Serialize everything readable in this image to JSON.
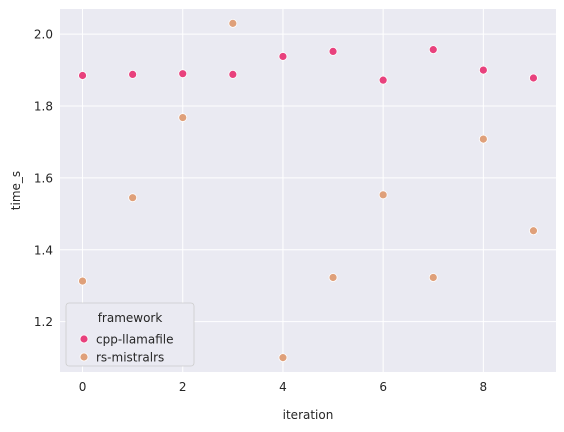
{
  "chart_data": {
    "type": "scatter",
    "xlabel": "iteration",
    "ylabel": "time_s",
    "xlim": [
      -0.45,
      9.45
    ],
    "ylim": [
      1.06,
      2.07
    ],
    "x_ticks": [
      0,
      2,
      4,
      6,
      8
    ],
    "y_ticks": [
      1.2,
      1.4,
      1.6,
      1.8,
      2.0
    ],
    "x_tick_labels": [
      "0",
      "2",
      "4",
      "6",
      "8"
    ],
    "y_tick_labels": [
      "1.2",
      "1.4",
      "1.6",
      "1.8",
      "2.0"
    ],
    "grid": true,
    "legend": {
      "title": "framework",
      "placement": "lower-left"
    },
    "series": [
      {
        "name": "cpp-llamafile",
        "color": "#e8417d",
        "x": [
          0,
          1,
          2,
          3,
          4,
          5,
          6,
          7,
          8,
          9
        ],
        "y": [
          1.885,
          1.888,
          1.89,
          1.888,
          1.938,
          1.952,
          1.872,
          1.957,
          1.9,
          1.878
        ]
      },
      {
        "name": "rs-mistralrs",
        "color": "#dfa07a",
        "x": [
          0,
          1,
          2,
          3,
          4,
          5,
          6,
          7,
          8,
          9
        ],
        "y": [
          1.313,
          1.545,
          1.768,
          2.03,
          1.1,
          1.323,
          1.553,
          1.323,
          1.708,
          1.453
        ]
      }
    ]
  }
}
